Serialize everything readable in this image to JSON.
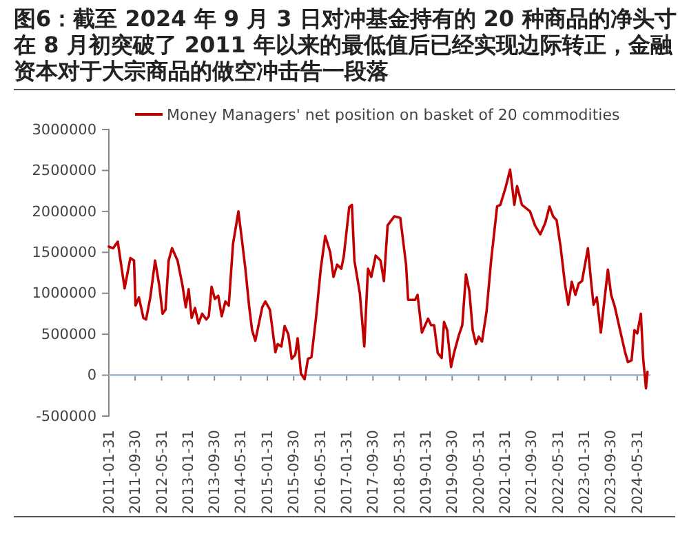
{
  "chart_data": {
    "type": "line",
    "title": "图6：截至 2024 年 9 月 3 日对冲基金持有的 20 种商品的净头寸在 8 月初突破了 2011 年以来的最低值后已经实现边际转正，金融资本对于大宗商品的做空冲击告一段落",
    "x": [
      "2011-01-31",
      "2011-03-12",
      "2011-04-23",
      "2011-06-25",
      "2011-08-17",
      "2011-09-20",
      "2011-10-04",
      "2011-11-04",
      "2011-12-15",
      "2012-01-09",
      "2012-02-17",
      "2012-04-01",
      "2012-05-09",
      "2012-06-09",
      "2012-07-06",
      "2012-08-04",
      "2012-09-04",
      "2012-10-25",
      "2012-12-09",
      "2013-01-09",
      "2013-02-04",
      "2013-03-04",
      "2013-04-04",
      "2013-05-06",
      "2013-06-09",
      "2013-07-17",
      "2013-08-09",
      "2013-09-04",
      "2013-10-04",
      "2013-11-04",
      "2013-12-06",
      "2014-01-09",
      "2014-02-09",
      "2014-03-20",
      "2014-05-09",
      "2014-06-15",
      "2014-07-12",
      "2014-08-15",
      "2014-09-12",
      "2014-10-12",
      "2014-11-09",
      "2014-12-15",
      "2015-01-12",
      "2015-02-23",
      "2015-03-15",
      "2015-04-15",
      "2015-05-06",
      "2015-06-09",
      "2015-07-09",
      "2015-08-12",
      "2015-09-12",
      "2015-10-15",
      "2015-11-06",
      "2015-12-06",
      "2016-01-09",
      "2016-02-09",
      "2016-03-12",
      "2016-04-23",
      "2016-06-06",
      "2016-07-17",
      "2016-09-01",
      "2016-10-01",
      "2016-11-04",
      "2016-12-12",
      "2017-01-04",
      "2017-02-23",
      "2017-03-20",
      "2017-04-12",
      "2017-06-01",
      "2017-07-12",
      "2017-08-15",
      "2017-09-15",
      "2017-10-25",
      "2017-12-09",
      "2018-01-09",
      "2018-02-12",
      "2018-04-15",
      "2018-06-09",
      "2018-08-01",
      "2018-08-20",
      "2018-10-23",
      "2018-11-15",
      "2018-12-25",
      "2019-02-20",
      "2019-03-20",
      "2019-04-17",
      "2019-05-20",
      "2019-06-25",
      "2019-07-17",
      "2019-08-15",
      "2019-09-20",
      "2019-10-17",
      "2019-12-01",
      "2020-01-01",
      "2020-02-04",
      "2020-03-06",
      "2020-04-06",
      "2020-05-06",
      "2020-06-01",
      "2020-07-01",
      "2020-08-12",
      "2020-09-23",
      "2020-11-17",
      "2020-12-17",
      "2021-02-01",
      "2021-03-17",
      "2021-04-25",
      "2021-05-20",
      "2021-07-04",
      "2021-09-17",
      "2021-11-01",
      "2021-12-20",
      "2022-02-04",
      "2022-03-15",
      "2022-04-17",
      "2022-05-20",
      "2022-06-25",
      "2022-08-04",
      "2022-09-04",
      "2022-10-06",
      "2022-11-09",
      "2022-12-09",
      "2023-01-09",
      "2023-03-04",
      "2023-04-04",
      "2023-04-25",
      "2023-05-25",
      "2023-07-01",
      "2023-09-04",
      "2023-10-04",
      "2023-11-06",
      "2023-12-25",
      "2024-02-06",
      "2024-03-06",
      "2024-04-09",
      "2024-05-06",
      "2024-06-01",
      "2024-07-04",
      "2024-07-25",
      "2024-08-20",
      "2024-09-03"
    ],
    "series": [
      {
        "name": "Money Managers' net position on basket of 20 commodities",
        "color": "#c00000",
        "values": [
          1570000,
          1550000,
          1630000,
          1060000,
          1430000,
          1400000,
          850000,
          950000,
          700000,
          680000,
          950000,
          1400000,
          1100000,
          750000,
          800000,
          1400000,
          1550000,
          1400000,
          1100000,
          830000,
          1050000,
          700000,
          820000,
          630000,
          750000,
          680000,
          720000,
          1080000,
          930000,
          970000,
          720000,
          900000,
          850000,
          1600000,
          2000000,
          1600000,
          1300000,
          850000,
          550000,
          420000,
          600000,
          830000,
          900000,
          800000,
          600000,
          280000,
          380000,
          350000,
          600000,
          500000,
          200000,
          250000,
          450000,
          20000,
          -50000,
          200000,
          220000,
          700000,
          1300000,
          1700000,
          1500000,
          1200000,
          1350000,
          1300000,
          1450000,
          2050000,
          2080000,
          1400000,
          1000000,
          350000,
          1300000,
          1200000,
          1460000,
          1400000,
          1150000,
          1830000,
          1940000,
          1920000,
          1350000,
          920000,
          920000,
          980000,
          520000,
          690000,
          610000,
          610000,
          270000,
          210000,
          650000,
          550000,
          100000,
          270000,
          490000,
          610000,
          1230000,
          1030000,
          550000,
          380000,
          470000,
          410000,
          780000,
          1400000,
          2060000,
          2080000,
          2280000,
          2510000,
          2080000,
          2310000,
          2080000,
          2000000,
          1830000,
          1720000,
          1860000,
          2060000,
          1940000,
          1890000,
          1570000,
          1120000,
          860000,
          1140000,
          980000,
          1120000,
          1150000,
          1550000,
          1120000,
          860000,
          950000,
          520000,
          1290000,
          980000,
          840000,
          550000,
          300000,
          160000,
          180000,
          550000,
          510000,
          750000,
          210000,
          -160000,
          40000
        ]
      }
    ],
    "xlim": [
      "2011-01-31",
      "2024-09-30"
    ],
    "xticks": [
      "2011-01-31",
      "2011-09-30",
      "2012-05-31",
      "2013-01-31",
      "2013-09-30",
      "2014-05-31",
      "2015-01-31",
      "2015-09-30",
      "2016-05-31",
      "2017-01-31",
      "2017-09-30",
      "2018-05-31",
      "2019-01-31",
      "2019-09-30",
      "2020-05-31",
      "2021-01-31",
      "2021-09-30",
      "2022-05-31",
      "2023-01-31",
      "2023-09-30",
      "2024-05-31"
    ],
    "ylim": [
      -500000,
      3000000
    ],
    "yticks": [
      -500000,
      0,
      500000,
      1000000,
      1500000,
      2000000,
      2500000,
      3000000
    ],
    "ref_lines": [
      {
        "axis": "y",
        "value": 0,
        "color": "#a9c0d8"
      }
    ],
    "grid": false,
    "legend": "top",
    "marker": "none",
    "line_style": "solid"
  }
}
